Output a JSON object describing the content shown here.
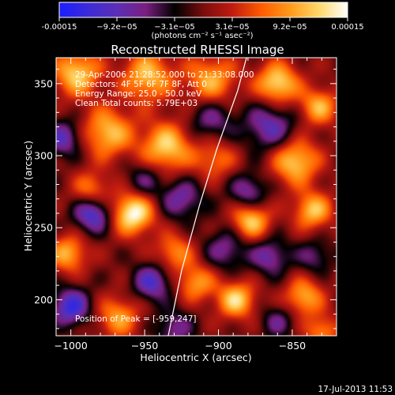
{
  "colorbar": {
    "ticks": [
      "-0.00015",
      "−9.2e−05",
      "−3.1e−05",
      "3.1e−05",
      "9.2e−05",
      "0.00015"
    ],
    "unit_label": "(photons cm⁻² s⁻¹ asec⁻²)",
    "colors": [
      "#1b1dff",
      "#3b2bd8",
      "#5b2fb5",
      "#7a1f80",
      "#000000",
      "#7a0d0d",
      "#c01b10",
      "#ff5a00",
      "#ff9a1a",
      "#ffd86a",
      "#ffffff"
    ]
  },
  "chart_data": {
    "type": "heatmap",
    "title": "Reconstructed RHESSI Image",
    "xlabel": "Heliocentric X (arcsec)",
    "ylabel": "Heliocentric Y (arcsec)",
    "xlim": [
      -1010,
      -820
    ],
    "ylim": [
      175,
      368
    ],
    "x_ticks": [
      -1000,
      -950,
      -900,
      -850
    ],
    "y_ticks": [
      200,
      250,
      300,
      350
    ],
    "x_tick_labels": [
      "−1000",
      "−950",
      "−900",
      "−850"
    ],
    "y_tick_labels": [
      "200",
      "250",
      "300",
      "350"
    ],
    "vmin": -0.00015,
    "vmax": 0.00015,
    "peak": {
      "x": -959,
      "y": 247
    },
    "annotations": [
      "29-Apr-2006 21:28:52.000 to 21:33:08.000",
      "Detectors: 4F 5F 6F 7F 8F, Att 0",
      "Energy Range: 25.0 - 50.0 keV",
      "Clean     Total counts: 5.79E+03"
    ],
    "peak_label": "Position of Peak = [-959,247]",
    "limb_points": [
      [
        -934,
        175
      ],
      [
        -925,
        220
      ],
      [
        -913,
        265
      ],
      [
        -901,
        305
      ],
      [
        -887,
        345
      ],
      [
        -881,
        368
      ]
    ],
    "sources": [
      {
        "x": -996,
        "y": 357,
        "amp": 0.00012,
        "s": 11
      },
      {
        "x": -948,
        "y": 355,
        "amp": 0.00011,
        "s": 12
      },
      {
        "x": -905,
        "y": 352,
        "amp": 0.0001,
        "s": 12
      },
      {
        "x": -860,
        "y": 350,
        "amp": 0.00013,
        "s": 10
      },
      {
        "x": -832,
        "y": 334,
        "amp": 0.0001,
        "s": 9
      },
      {
        "x": -975,
        "y": 316,
        "amp": 0.00011,
        "s": 12
      },
      {
        "x": -935,
        "y": 306,
        "amp": 0.00012,
        "s": 12
      },
      {
        "x": -902,
        "y": 298,
        "amp": 7e-05,
        "s": 10
      },
      {
        "x": -848,
        "y": 296,
        "amp": 0.00012,
        "s": 11
      },
      {
        "x": -958,
        "y": 260,
        "amp": 0.00015,
        "s": 10
      },
      {
        "x": -986,
        "y": 276,
        "amp": 8e-05,
        "s": 9
      },
      {
        "x": -878,
        "y": 255,
        "amp": 0.00012,
        "s": 9
      },
      {
        "x": -836,
        "y": 262,
        "amp": 0.00011,
        "s": 9
      },
      {
        "x": -930,
        "y": 233,
        "amp": 8e-05,
        "s": 9
      },
      {
        "x": -1002,
        "y": 232,
        "amp": 0.0001,
        "s": 9
      },
      {
        "x": -915,
        "y": 212,
        "amp": 9e-05,
        "s": 9
      },
      {
        "x": -888,
        "y": 200,
        "amp": 0.00012,
        "s": 9
      },
      {
        "x": -842,
        "y": 202,
        "amp": 0.0001,
        "s": 9
      },
      {
        "x": -968,
        "y": 188,
        "amp": 9e-05,
        "s": 10
      },
      {
        "x": -830,
        "y": 178,
        "amp": 8e-05,
        "s": 8
      },
      {
        "x": -985,
        "y": 260,
        "amp": -0.00012,
        "s": 9
      },
      {
        "x": -1005,
        "y": 312,
        "amp": -9e-05,
        "s": 9
      },
      {
        "x": -950,
        "y": 283,
        "amp": -6e-05,
        "s": 9
      },
      {
        "x": -905,
        "y": 325,
        "amp": -7e-05,
        "s": 11
      },
      {
        "x": -925,
        "y": 270,
        "amp": -8e-05,
        "s": 10
      },
      {
        "x": -865,
        "y": 320,
        "amp": -9e-05,
        "s": 12
      },
      {
        "x": -895,
        "y": 235,
        "amp": -7e-05,
        "s": 10
      },
      {
        "x": -1000,
        "y": 195,
        "amp": -0.00012,
        "s": 9
      },
      {
        "x": -945,
        "y": 212,
        "amp": -0.0001,
        "s": 9
      },
      {
        "x": -865,
        "y": 230,
        "amp": -8e-05,
        "s": 9
      },
      {
        "x": -835,
        "y": 230,
        "amp": -6e-05,
        "s": 8
      },
      {
        "x": -930,
        "y": 180,
        "amp": -7e-05,
        "s": 9
      },
      {
        "x": -880,
        "y": 275,
        "amp": -8e-05,
        "s": 9
      },
      {
        "x": -860,
        "y": 185,
        "amp": -6e-05,
        "s": 8
      }
    ]
  },
  "footer": {
    "timestamp": "17-Jul-2013 11:53"
  }
}
